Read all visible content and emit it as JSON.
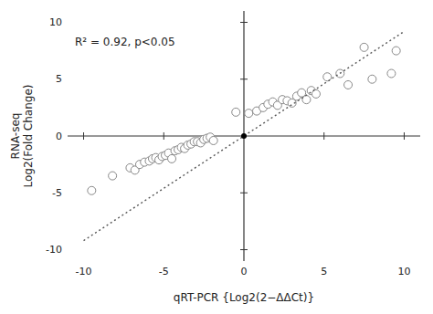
{
  "chart_data": {
    "type": "scatter",
    "x_label": "qRT-PCR {Log2(2−ΔΔCt)}",
    "y_label": "RNA-seq\nLog2(Fold Change)",
    "annotation": "R² = 0.92, p<0.05",
    "xlim": [
      -11,
      11
    ],
    "ylim": [
      -11,
      11
    ],
    "xticks": [
      -10,
      -5,
      0,
      5,
      10
    ],
    "yticks": [
      -10,
      -5,
      0,
      5,
      10
    ],
    "grid": false,
    "series": [
      {
        "type": "scatter",
        "marker": "circle",
        "color": "#888888",
        "x": [
          -9.5,
          -8.2,
          -7.1,
          -6.8,
          -6.5,
          -6.2,
          -5.9,
          -5.7,
          -5.5,
          -5.3,
          -5.1,
          -4.9,
          -4.7,
          -4.5,
          -4.3,
          -4.1,
          -3.9,
          -3.7,
          -3.5,
          -3.3,
          -3.1,
          -2.9,
          -2.7,
          -2.5,
          -2.3,
          -2.1,
          -1.9,
          -0.5,
          0.3,
          0.8,
          1.2,
          1.5,
          1.8,
          2.1,
          2.4,
          2.7,
          3.0,
          3.3,
          3.6,
          3.9,
          4.2,
          4.5,
          5.2,
          6.0,
          6.5,
          7.5,
          8.0,
          9.2,
          9.5
        ],
        "values": [
          -4.8,
          -3.5,
          -2.8,
          -3.0,
          -2.5,
          -2.3,
          -2.2,
          -2.0,
          -1.9,
          -2.1,
          -1.8,
          -1.7,
          -1.5,
          -2.0,
          -1.3,
          -1.2,
          -1.0,
          -1.1,
          -0.8,
          -0.7,
          -0.5,
          -0.5,
          -0.6,
          -0.3,
          -0.2,
          -0.1,
          -0.4,
          2.1,
          2.0,
          2.2,
          2.5,
          2.8,
          3.0,
          2.7,
          3.2,
          3.1,
          2.9,
          3.5,
          3.8,
          3.2,
          4.0,
          3.7,
          5.2,
          5.5,
          4.5,
          7.8,
          5.0,
          5.5,
          7.5
        ]
      },
      {
        "type": "line",
        "line_style": "dotted",
        "color": "#555555",
        "x": [
          -10,
          10
        ],
        "values": [
          -9.2,
          9.2
        ]
      }
    ]
  }
}
